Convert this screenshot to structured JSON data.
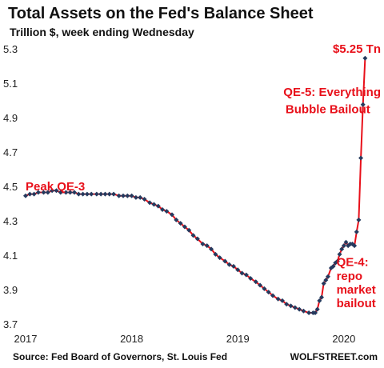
{
  "chart_data": {
    "type": "line",
    "title": "Total Assets on the Fed's Balance Sheet",
    "subtitle": "Trillion $, week ending Wednesday",
    "source": "Source: Fed Board of Governors, St. Louis Fed",
    "brand": "WOLFSTREET.com",
    "ylim": [
      3.7,
      5.3
    ],
    "xlim": [
      2017.0,
      2020.25
    ],
    "yticks": [
      3.7,
      3.9,
      4.1,
      4.3,
      4.5,
      4.7,
      4.9,
      5.1,
      5.3
    ],
    "yticklabels": [
      "3.7",
      "3.9",
      "4.1",
      "4.3",
      "4.5",
      "4.7",
      "4.9",
      "5.1",
      "5.3"
    ],
    "xticks": [
      2017,
      2018,
      2019,
      2020
    ],
    "xticklabels": [
      "2017",
      "2018",
      "2019",
      "2020"
    ],
    "grid": false,
    "colors": {
      "line": "#e8101a",
      "markers": "#253a5e",
      "annotations": "#e8101a"
    },
    "annotations": [
      {
        "text": "Peak QE-3",
        "x": 2017.0,
        "y": 4.5
      },
      {
        "text": "QE-5: Everything",
        "x": 2019.45,
        "y": 5.05
      },
      {
        "text": "Bubble Bailout",
        "x": 2019.45,
        "y": 4.95
      },
      {
        "text": "$5.25 Tn",
        "x": 2020.2,
        "y": 5.3
      },
      {
        "text": "QE-4:",
        "x": 2019.93,
        "y": 4.06
      },
      {
        "text": "repo",
        "x": 2019.93,
        "y": 3.98
      },
      {
        "text": "market",
        "x": 2019.93,
        "y": 3.9
      },
      {
        "text": "bailout",
        "x": 2019.93,
        "y": 3.82
      }
    ],
    "series": [
      {
        "x": [
          2017.0,
          2017.04,
          2017.08,
          2017.12,
          2017.17,
          2017.21,
          2017.25,
          2017.29,
          2017.33,
          2017.38,
          2017.42,
          2017.46,
          2017.5,
          2017.54,
          2017.58,
          2017.62,
          2017.67,
          2017.71,
          2017.75,
          2017.79,
          2017.83,
          2017.88,
          2017.92,
          2017.96,
          2018.0,
          2018.04,
          2018.08,
          2018.12,
          2018.17,
          2018.21,
          2018.25,
          2018.29,
          2018.33,
          2018.38,
          2018.42,
          2018.46,
          2018.5,
          2018.54,
          2018.58,
          2018.62,
          2018.67,
          2018.71,
          2018.75,
          2018.79,
          2018.83,
          2018.88,
          2018.92,
          2018.96,
          2019.0,
          2019.04,
          2019.08,
          2019.12,
          2019.17,
          2019.21,
          2019.25,
          2019.29,
          2019.33,
          2019.38,
          2019.42,
          2019.46,
          2019.5,
          2019.54,
          2019.58,
          2019.62,
          2019.67,
          2019.71,
          2019.73,
          2019.75,
          2019.77,
          2019.79,
          2019.81,
          2019.83,
          2019.85,
          2019.88,
          2019.9,
          2019.92,
          2019.94,
          2019.96,
          2019.98,
          2020.0,
          2020.02,
          2020.04,
          2020.06,
          2020.08,
          2020.1,
          2020.12,
          2020.14,
          2020.16,
          2020.18,
          2020.2
        ],
        "y": [
          4.45,
          4.46,
          4.46,
          4.47,
          4.47,
          4.47,
          4.48,
          4.48,
          4.47,
          4.47,
          4.47,
          4.47,
          4.46,
          4.46,
          4.46,
          4.46,
          4.46,
          4.46,
          4.46,
          4.46,
          4.46,
          4.45,
          4.45,
          4.45,
          4.45,
          4.44,
          4.44,
          4.43,
          4.41,
          4.4,
          4.39,
          4.37,
          4.36,
          4.34,
          4.31,
          4.29,
          4.27,
          4.25,
          4.22,
          4.2,
          4.17,
          4.16,
          4.14,
          4.11,
          4.09,
          4.07,
          4.05,
          4.04,
          4.02,
          4.0,
          3.99,
          3.97,
          3.95,
          3.93,
          3.91,
          3.89,
          3.87,
          3.85,
          3.84,
          3.82,
          3.81,
          3.8,
          3.79,
          3.78,
          3.77,
          3.77,
          3.77,
          3.79,
          3.84,
          3.86,
          3.94,
          3.96,
          3.98,
          4.03,
          4.04,
          4.06,
          4.07,
          4.11,
          4.14,
          4.16,
          4.18,
          4.16,
          4.17,
          4.17,
          4.16,
          4.24,
          4.31,
          4.67,
          4.98,
          5.25
        ]
      }
    ]
  }
}
